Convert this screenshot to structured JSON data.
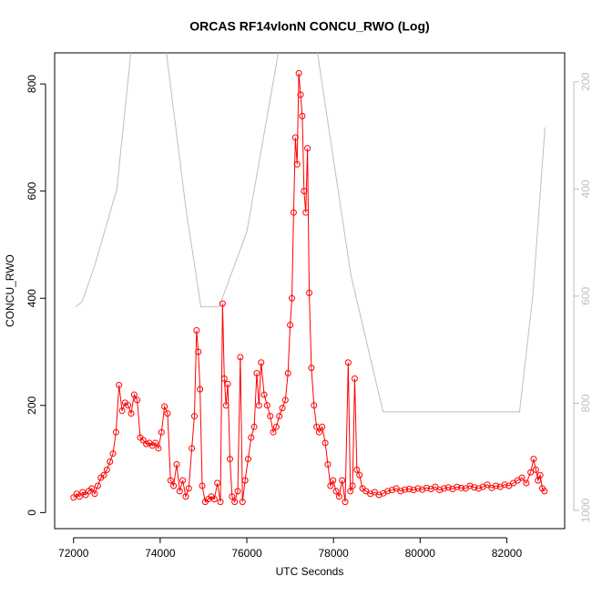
{
  "chart_data": {
    "type": "line",
    "title": "ORCAS RF14vlonN CONCU_RWO (Log)",
    "x_label": "UTC Seconds",
    "y_label": "CONCU_RWO",
    "x": [
      72000,
      72070,
      72140,
      72210,
      72280,
      72350,
      72420,
      72490,
      72560,
      72630,
      72700,
      72770,
      72840,
      72910,
      72980,
      73050,
      73120,
      73190,
      73260,
      73330,
      73400,
      73470,
      73540,
      73610,
      73680,
      73750,
      73820,
      73890,
      73960,
      74030,
      74100,
      74170,
      74240,
      74310,
      74380,
      74450,
      74520,
      74590,
      74660,
      74730,
      74790,
      74840,
      74880,
      74920,
      74970,
      75040,
      75110,
      75180,
      75250,
      75320,
      75390,
      75440,
      75480,
      75520,
      75560,
      75610,
      75660,
      75720,
      75790,
      75850,
      75900,
      75960,
      76030,
      76100,
      76170,
      76230,
      76280,
      76330,
      76400,
      76470,
      76540,
      76610,
      76680,
      76750,
      76820,
      76890,
      76950,
      77000,
      77040,
      77080,
      77120,
      77160,
      77200,
      77240,
      77280,
      77320,
      77360,
      77400,
      77440,
      77490,
      77550,
      77610,
      77670,
      77740,
      77810,
      77870,
      77930,
      77990,
      78060,
      78130,
      78200,
      78270,
      78340,
      78390,
      78440,
      78490,
      78540,
      78600,
      78670,
      78750,
      78850,
      78950,
      79050,
      79150,
      79250,
      79350,
      79450,
      79550,
      79650,
      79750,
      79850,
      79950,
      80050,
      80150,
      80250,
      80350,
      80450,
      80550,
      80650,
      80750,
      80850,
      80950,
      81050,
      81150,
      81250,
      81350,
      81450,
      81550,
      81650,
      81750,
      81850,
      81950,
      82050,
      82150,
      82250,
      82350,
      82450,
      82550,
      82620,
      82670,
      82720,
      82770,
      82820,
      82870
    ],
    "series": [
      {
        "color": "#ff0000",
        "marker": "circle",
        "values": [
          28,
          35,
          30,
          38,
          33,
          40,
          45,
          35,
          50,
          65,
          70,
          80,
          95,
          110,
          150,
          238,
          190,
          205,
          200,
          185,
          220,
          210,
          140,
          135,
          128,
          130,
          125,
          130,
          120,
          150,
          198,
          185,
          60,
          50,
          90,
          40,
          60,
          30,
          45,
          120,
          180,
          340,
          300,
          230,
          50,
          20,
          25,
          30,
          25,
          55,
          20,
          390,
          250,
          200,
          240,
          100,
          30,
          20,
          40,
          290,
          20,
          60,
          100,
          140,
          160,
          260,
          200,
          280,
          220,
          200,
          180,
          150,
          160,
          180,
          195,
          210,
          260,
          350,
          400,
          560,
          700,
          650,
          820,
          780,
          740,
          600,
          560,
          680,
          410,
          270,
          200,
          160,
          150,
          160,
          130,
          90,
          50,
          60,
          40,
          30,
          60,
          20,
          280,
          40,
          50,
          250,
          80,
          70,
          45,
          40,
          35,
          38,
          33,
          36,
          40,
          42,
          45,
          40,
          43,
          44,
          42,
          45,
          43,
          46,
          44,
          48,
          42,
          45,
          47,
          44,
          48,
          46,
          45,
          50,
          47,
          45,
          48,
          52,
          46,
          50,
          48,
          52,
          50,
          55,
          60,
          65,
          55,
          75,
          100,
          80,
          60,
          70,
          45,
          40
        ]
      },
      {
        "color": "#bebebe",
        "axis": "y2",
        "x": [
          72050,
          72200,
          72500,
          73000,
          73323,
          73700,
          74143,
          74600,
          74940,
          75360,
          76000,
          76727,
          77150,
          77630,
          78400,
          79143,
          82294,
          82600,
          82882
        ],
        "values": [
          620,
          610,
          540,
          400,
          146,
          80,
          146,
          440,
          620,
          620,
          480,
          146,
          60,
          146,
          560,
          816,
          816,
          600,
          285
        ]
      }
    ],
    "xlim": [
      71564,
      83336
    ],
    "xticks": [
      72000,
      74000,
      76000,
      78000,
      80000,
      82000
    ],
    "ylim": [
      -30,
      858
    ],
    "yticks": [
      0,
      200,
      400,
      600,
      800
    ],
    "y2lim": [
      1034,
      146
    ],
    "y2ticks": [
      200,
      400,
      600,
      800,
      1000
    ],
    "y2_color": "#bebebe"
  }
}
